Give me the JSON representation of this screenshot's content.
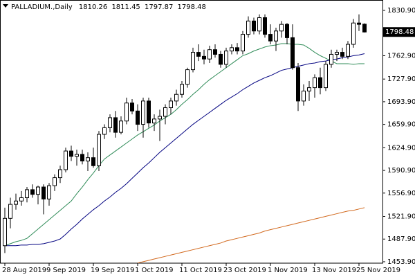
{
  "chart_data": {
    "type": "candlestick",
    "title": "PALLADIUM.,Daily",
    "categories": [
      "28 Aug 2019",
      null,
      null,
      null,
      null,
      null,
      null,
      null,
      "9 Sep 2019",
      null,
      null,
      null,
      null,
      null,
      null,
      null,
      "19 Sep 2019",
      null,
      null,
      null,
      null,
      null,
      null,
      null,
      "1 Oct 2019",
      null,
      null,
      null,
      null,
      null,
      null,
      null,
      "11 Oct 2019",
      null,
      null,
      null,
      null,
      null,
      null,
      null,
      "23 Oct 2019",
      null,
      null,
      null,
      null,
      null,
      null,
      null,
      "1 Nov 2019",
      null,
      null,
      null,
      null,
      null,
      null,
      null,
      "13 Nov 2019",
      null,
      null,
      null,
      null,
      null,
      null,
      null,
      "25 Nov 2019",
      null
    ],
    "open": [
      1478,
      1519,
      1540,
      1545,
      1550,
      1562,
      1555,
      1566,
      1548,
      1568,
      1580,
      1592,
      1620,
      1612,
      1615,
      1605,
      1610,
      1598,
      1645,
      1655,
      1670,
      1648,
      1665,
      1692,
      1680,
      1660,
      1695,
      1662,
      1668,
      1672,
      1685,
      1695,
      1705,
      1720,
      1742,
      1768,
      1762,
      1758,
      1772,
      1765,
      1750,
      1770,
      1775,
      1770,
      1795,
      1815,
      1800,
      1820,
      1795,
      1785,
      1800,
      1810,
      1790,
      1745,
      1695,
      1710,
      1715,
      1730,
      1715,
      1750,
      1765,
      1768,
      1762,
      1780,
      1812,
      1810.26
    ],
    "high": [
      1535,
      1550,
      1556,
      1560,
      1566,
      1570,
      1568,
      1570,
      1572,
      1585,
      1598,
      1625,
      1628,
      1622,
      1622,
      1618,
      1625,
      1650,
      1660,
      1675,
      1680,
      1672,
      1700,
      1698,
      1690,
      1700,
      1700,
      1675,
      1682,
      1690,
      1700,
      1712,
      1725,
      1745,
      1775,
      1780,
      1772,
      1778,
      1780,
      1770,
      1775,
      1780,
      1782,
      1800,
      1822,
      1820,
      1825,
      1825,
      1810,
      1805,
      1815,
      1812,
      1810,
      1752,
      1720,
      1725,
      1735,
      1745,
      1755,
      1772,
      1772,
      1775,
      1785,
      1818,
      1825,
      1811.45
    ],
    "low": [
      1467,
      1504,
      1532,
      1538,
      1543,
      1550,
      1540,
      1525,
      1538,
      1560,
      1572,
      1588,
      1605,
      1598,
      1600,
      1590,
      1595,
      1590,
      1638,
      1648,
      1640,
      1645,
      1660,
      1675,
      1650,
      1640,
      1655,
      1650,
      1635,
      1660,
      1675,
      1688,
      1700,
      1715,
      1738,
      1755,
      1750,
      1752,
      1760,
      1745,
      1745,
      1765,
      1765,
      1765,
      1790,
      1795,
      1795,
      1790,
      1780,
      1770,
      1790,
      1780,
      1742,
      1680,
      1688,
      1695,
      1700,
      1705,
      1710,
      1745,
      1755,
      1758,
      1758,
      1775,
      1800,
      1797.87
    ],
    "close": [
      1519,
      1540,
      1545,
      1550,
      1562,
      1555,
      1566,
      1548,
      1568,
      1580,
      1592,
      1620,
      1612,
      1615,
      1605,
      1610,
      1598,
      1645,
      1655,
      1670,
      1648,
      1665,
      1692,
      1680,
      1660,
      1695,
      1662,
      1668,
      1672,
      1685,
      1695,
      1705,
      1720,
      1742,
      1768,
      1762,
      1758,
      1772,
      1765,
      1750,
      1770,
      1775,
      1770,
      1795,
      1815,
      1800,
      1820,
      1795,
      1785,
      1800,
      1810,
      1790,
      1745,
      1695,
      1710,
      1715,
      1730,
      1715,
      1750,
      1765,
      1768,
      1762,
      1780,
      1812,
      1810,
      1798.48
    ],
    "up_color": "#ffffff",
    "down_color": "#000000",
    "lines": [
      {
        "color": "#2e8b57",
        "values": [
          1478,
          1481,
          1484,
          1486,
          1489,
          1496,
          1503,
          1510,
          1517,
          1524,
          1531,
          1538,
          1545,
          1556,
          1566,
          1577,
          1587,
          1598,
          1608,
          1614,
          1620,
          1626,
          1632,
          1638,
          1644,
          1649,
          1654,
          1659,
          1665,
          1670,
          1675,
          1682,
          1690,
          1697,
          1705,
          1712,
          1720,
          1727,
          1733,
          1739,
          1745,
          1751,
          1757,
          1763,
          1766,
          1770,
          1773,
          1776,
          1778,
          1779,
          1781,
          1781,
          1780,
          1780,
          1779,
          1774,
          1768,
          1763,
          1759,
          1755,
          1751,
          1751,
          1751,
          1750,
          1751,
          1751
        ]
      },
      {
        "color": "#000080",
        "values": [
          1478,
          1478,
          1478,
          1479,
          1479,
          1480,
          1480,
          1481,
          1483,
          1485,
          1488,
          1495,
          1503,
          1510,
          1518,
          1525,
          1532,
          1538,
          1545,
          1551,
          1558,
          1564,
          1571,
          1579,
          1587,
          1595,
          1602,
          1610,
          1618,
          1625,
          1632,
          1639,
          1646,
          1653,
          1660,
          1666,
          1672,
          1678,
          1684,
          1690,
          1696,
          1701,
          1706,
          1712,
          1717,
          1722,
          1726,
          1730,
          1733,
          1737,
          1741,
          1743,
          1745,
          1747,
          1749,
          1751,
          1752,
          1754,
          1755,
          1757,
          1758,
          1760,
          1761,
          1763,
          1764,
          1766
        ]
      },
      {
        "color": "#d2691e",
        "values": [
          null,
          null,
          null,
          null,
          null,
          null,
          null,
          null,
          null,
          null,
          null,
          null,
          null,
          null,
          null,
          null,
          null,
          null,
          null,
          null,
          null,
          null,
          null,
          null,
          1452,
          1454,
          1456,
          1458,
          1460,
          1462,
          1464,
          1466,
          1468,
          1470,
          1472,
          1474,
          1476,
          1478,
          1480,
          1482,
          1485,
          1487,
          1489,
          1491,
          1493,
          1495,
          1497,
          1500,
          1502,
          1504,
          1506,
          1508,
          1510,
          1512,
          1514,
          1516,
          1518,
          1520,
          1522,
          1524,
          1526,
          1528,
          1530,
          1531,
          1533,
          1535
        ]
      }
    ],
    "ylim": [
      1451.8,
      1841.3
    ],
    "yticks": [
      {
        "value": 1830.9,
        "label": "1830.90"
      },
      {
        "value": 1762.9,
        "label": "1762.90"
      },
      {
        "value": 1727.9,
        "label": "1727.90"
      },
      {
        "value": 1693.9,
        "label": "1693.90"
      },
      {
        "value": 1659.9,
        "label": "1659.90"
      },
      {
        "value": 1624.9,
        "label": "1624.90"
      },
      {
        "value": 1590.9,
        "label": "1590.90"
      },
      {
        "value": 1556.9,
        "label": "1556.90"
      },
      {
        "value": 1521.9,
        "label": "1521.90"
      },
      {
        "value": 1487.9,
        "label": "1487.90"
      },
      {
        "value": 1453.9,
        "label": "1453.90"
      }
    ]
  }
}
